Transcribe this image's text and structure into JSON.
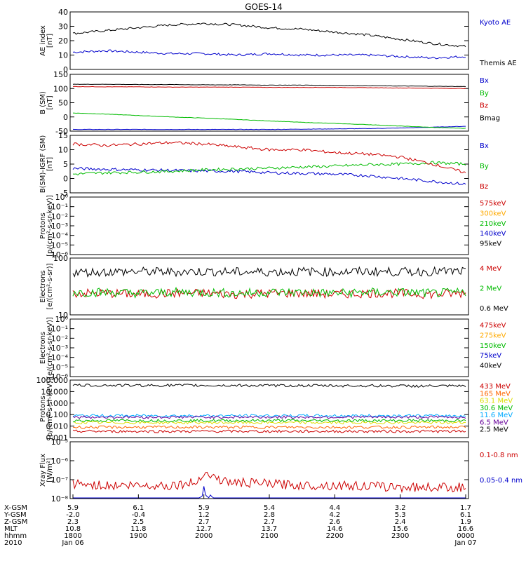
{
  "title": "GOES-14",
  "panels": [
    {
      "ylabel": "AE index\n[nT]",
      "ticks": [
        {
          "v": 0,
          "label": "0"
        },
        {
          "v": 10,
          "label": "10"
        },
        {
          "v": 20,
          "label": "20"
        },
        {
          "v": 30,
          "label": "30"
        },
        {
          "v": 40,
          "label": "40"
        }
      ],
      "legend": [
        {
          "label": "Kyoto AE",
          "color": "#0000cc"
        },
        {
          "label": "Themis AE",
          "color": "#000000"
        }
      ]
    },
    {
      "ylabel": "B (SM)\n[nT]",
      "ticks": [
        {
          "v": -50,
          "label": "-50"
        },
        {
          "v": 0,
          "label": "0"
        },
        {
          "v": 50,
          "label": "50"
        },
        {
          "v": 100,
          "label": "100"
        },
        {
          "v": 150,
          "label": "150"
        }
      ],
      "legend": [
        {
          "label": "Bx",
          "color": "#0000cc"
        },
        {
          "label": "By",
          "color": "#00bb00"
        },
        {
          "label": "Bz",
          "color": "#cc0000"
        },
        {
          "label": "Bmag",
          "color": "#000000"
        }
      ]
    },
    {
      "ylabel": "B(SM)-IGRF (SM)\n[nT]",
      "ticks": [
        {
          "v": -5,
          "label": "-5"
        },
        {
          "v": 0,
          "label": "0"
        },
        {
          "v": 5,
          "label": "5"
        },
        {
          "v": 10,
          "label": "10"
        },
        {
          "v": 15,
          "label": "15"
        }
      ],
      "legend": [
        {
          "label": "Bx",
          "color": "#0000cc"
        },
        {
          "label": "By",
          "color": "#00bb00"
        },
        {
          "label": "Bz",
          "color": "#cc0000"
        }
      ]
    },
    {
      "ylabel": "Protons\n[p/(cm²-s-sr-keV)]",
      "ticks": [
        {
          "v": -6,
          "label": "10⁻⁶"
        },
        {
          "v": -5,
          "label": "10⁻⁵"
        },
        {
          "v": -4,
          "label": "10⁻⁴"
        },
        {
          "v": -3,
          "label": "10⁻³"
        },
        {
          "v": -2,
          "label": "10⁻²"
        },
        {
          "v": -1,
          "label": "10⁻¹"
        },
        {
          "v": 0,
          "label": "10⁰"
        }
      ],
      "legend": [
        {
          "label": "575keV",
          "color": "#cc0000"
        },
        {
          "label": "300keV",
          "color": "#ffaa00"
        },
        {
          "label": "210keV",
          "color": "#00bb00"
        },
        {
          "label": "140keV",
          "color": "#0000cc"
        },
        {
          "label": "95keV",
          "color": "#000000"
        }
      ]
    },
    {
      "ylabel": "Electrons\n[e/(cm²-s-sr)]",
      "ticks": [
        {
          "v": 1,
          "label": "10"
        },
        {
          "v": 2,
          "label": "100"
        }
      ],
      "legend": [
        {
          "label": "4 MeV",
          "color": "#cc0000"
        },
        {
          "label": "2 MeV",
          "color": "#00bb00"
        },
        {
          "label": "0.6 MeV",
          "color": "#000000"
        }
      ]
    },
    {
      "ylabel": "Electrons\n[e/(cm²-s-sr-keV)]",
      "ticks": [
        {
          "v": -6,
          "label": "10⁻⁶"
        },
        {
          "v": -5,
          "label": "10⁻⁵"
        },
        {
          "v": -4,
          "label": "10⁻⁴"
        },
        {
          "v": -3,
          "label": "10⁻³"
        },
        {
          "v": -2,
          "label": "10⁻²"
        },
        {
          "v": -1,
          "label": "10⁻¹"
        },
        {
          "v": 0,
          "label": "10⁰"
        }
      ],
      "legend": [
        {
          "label": "475keV",
          "color": "#cc0000"
        },
        {
          "label": "275keV",
          "color": "#ffaa00"
        },
        {
          "label": "150keV",
          "color": "#00bb00"
        },
        {
          "label": "75keV",
          "color": "#0000cc"
        },
        {
          "label": "40keV",
          "color": "#000000"
        }
      ]
    },
    {
      "ylabel": "Protons\n[p/(cm²-s-sr-keV)]",
      "ticks": [
        {
          "v": -3,
          "label": "0.001"
        },
        {
          "v": -2,
          "label": "0.010"
        },
        {
          "v": -1,
          "label": "0.100"
        },
        {
          "v": 0,
          "label": "1.000"
        },
        {
          "v": 1,
          "label": "10.000"
        },
        {
          "v": 2,
          "label": "100.000"
        }
      ],
      "legend": [
        {
          "label": "433 MeV",
          "color": "#cc0000"
        },
        {
          "label": "165 MeV",
          "color": "#ff6600"
        },
        {
          "label": "63.1 MeV",
          "color": "#dddd00"
        },
        {
          "label": "30.6 MeV",
          "color": "#00bb00"
        },
        {
          "label": "11.6 MeV",
          "color": "#00aaff"
        },
        {
          "label": "6.5 MeV",
          "color": "#660099"
        },
        {
          "label": "2.5 MeV",
          "color": "#000000"
        }
      ]
    },
    {
      "ylabel": "Xray Flux\n[W/m²]",
      "ticks": [
        {
          "v": -8,
          "label": "10⁻⁸"
        },
        {
          "v": -7,
          "label": "10⁻⁷"
        },
        {
          "v": -6,
          "label": "10⁻⁶"
        },
        {
          "v": -5,
          "label": "10⁻⁵"
        }
      ],
      "legend": [
        {
          "label": "0.1-0.8 nm",
          "color": "#cc0000"
        },
        {
          "label": "0.05-0.4 nm",
          "color": "#0000cc"
        }
      ]
    }
  ],
  "x_axis": {
    "row_labels": [
      "X-GSM",
      "Y-GSM",
      "Z-GSM",
      "MLT",
      "hhmm",
      "2010"
    ],
    "columns": [
      [
        "5.9",
        "-2.0",
        "2.3",
        "10.8",
        "1800",
        "Jan 06"
      ],
      [
        "6.1",
        "-0.4",
        "2.5",
        "11.8",
        "1900",
        ""
      ],
      [
        "5.9",
        "1.2",
        "2.7",
        "12.7",
        "2000",
        ""
      ],
      [
        "5.4",
        "2.8",
        "2.7",
        "13.7",
        "2100",
        ""
      ],
      [
        "4.4",
        "4.2",
        "2.6",
        "14.6",
        "2200",
        ""
      ],
      [
        "3.2",
        "5.3",
        "2.4",
        "15.6",
        "2300",
        ""
      ],
      [
        "1.7",
        "6.1",
        "1.9",
        "16.6",
        "0000",
        "Jan 07"
      ]
    ]
  },
  "chart_data": [
    {
      "type": "line",
      "ylabel": "AE index [nT]",
      "ylim": [
        0,
        40
      ],
      "x": [
        0,
        0.5,
        1,
        1.5,
        2,
        2.5,
        3,
        3.5,
        4,
        4.5,
        5,
        5.5,
        6
      ],
      "series": [
        {
          "name": "Kyoto AE",
          "color": "#0000cc",
          "values": [
            12,
            13,
            12,
            11,
            11,
            10,
            11,
            10,
            10,
            10,
            9,
            8,
            9
          ]
        },
        {
          "name": "Themis AE",
          "color": "#000000",
          "values": [
            25,
            27,
            29,
            31,
            32,
            31,
            29,
            28,
            26,
            24,
            21,
            18,
            16
          ]
        }
      ]
    },
    {
      "type": "line",
      "ylabel": "B (SM) [nT]",
      "ylim": [
        -50,
        150
      ],
      "x": [
        0,
        0.5,
        1,
        1.5,
        2,
        2.5,
        3,
        3.5,
        4,
        4.5,
        5,
        5.5,
        6
      ],
      "series": [
        {
          "name": "Bx",
          "color": "#0000cc",
          "values": [
            -44,
            -44,
            -44,
            -44,
            -44,
            -44,
            -44,
            -43,
            -42,
            -41,
            -39,
            -36,
            -33
          ]
        },
        {
          "name": "By",
          "color": "#00bb00",
          "values": [
            14,
            10,
            5,
            0,
            -4,
            -9,
            -14,
            -19,
            -23,
            -27,
            -32,
            -37,
            -40
          ]
        },
        {
          "name": "Bz",
          "color": "#cc0000",
          "values": [
            107,
            106,
            106,
            105,
            105,
            105,
            104,
            104,
            104,
            103,
            102,
            101,
            100
          ]
        },
        {
          "name": "Bmag",
          "color": "#000000",
          "values": [
            115,
            115,
            114,
            114,
            113,
            113,
            112,
            112,
            111,
            110,
            109,
            108,
            107
          ]
        }
      ]
    },
    {
      "type": "line",
      "ylabel": "B(SM)-IGRF (SM) [nT]",
      "ylim": [
        -5,
        15
      ],
      "x": [
        0,
        0.5,
        1,
        1.5,
        2,
        2.5,
        3,
        3.5,
        4,
        4.5,
        5,
        5.5,
        6
      ],
      "series": [
        {
          "name": "Bx",
          "color": "#0000cc",
          "values": [
            3.5,
            3.2,
            3,
            2.8,
            2.6,
            2.5,
            2,
            1.8,
            1.5,
            1,
            0,
            -1,
            -2
          ]
        },
        {
          "name": "By",
          "color": "#00bb00",
          "values": [
            1.5,
            2,
            2.2,
            2.5,
            3,
            3.3,
            3.6,
            4,
            4.3,
            4.8,
            5,
            5.5,
            5
          ]
        },
        {
          "name": "Bz",
          "color": "#cc0000",
          "values": [
            12,
            11.5,
            12,
            12.5,
            12,
            11,
            10,
            10,
            9,
            8.5,
            7.5,
            5,
            2
          ]
        }
      ]
    },
    {
      "type": "line",
      "ylabel": "Protons [p/(cm²-s-sr-keV)]",
      "scale": "log",
      "ylim": [
        1e-06,
        1
      ],
      "series": []
    },
    {
      "type": "line",
      "ylabel": "Electrons [e/(cm²-s-sr)]",
      "scale": "log",
      "ylim": [
        10,
        100
      ],
      "x": [
        0,
        0.5,
        1,
        1.5,
        2,
        2.5,
        3,
        3.5,
        4,
        4.5,
        5,
        5.5,
        6
      ],
      "series": [
        {
          "name": "4 MeV",
          "color": "#cc0000",
          "values": [
            24,
            24,
            23,
            24,
            24,
            23,
            24,
            24,
            23,
            24,
            24,
            23,
            24
          ]
        },
        {
          "name": "2 MeV",
          "color": "#00bb00",
          "values": [
            25,
            25,
            24,
            25,
            25,
            24,
            25,
            25,
            24,
            25,
            25,
            24,
            25
          ]
        },
        {
          "name": "0.6 MeV",
          "color": "#000000",
          "values": [
            56,
            57,
            58,
            57,
            58,
            57,
            57,
            58,
            57,
            58,
            57,
            58,
            58
          ]
        }
      ]
    },
    {
      "type": "line",
      "ylabel": "Electrons [e/(cm²-s-sr-keV)]",
      "scale": "log",
      "ylim": [
        1e-06,
        1
      ],
      "series": []
    },
    {
      "type": "line",
      "ylabel": "Protons [p/(cm²-s-sr-keV)]",
      "scale": "log",
      "ylim": [
        0.001,
        100
      ],
      "x": [
        0,
        0.5,
        1,
        1.5,
        2,
        2.5,
        3,
        3.5,
        4,
        4.5,
        5,
        5.5,
        6
      ],
      "series": [
        {
          "name": "433 MeV",
          "color": "#cc0000",
          "values": [
            0.0035,
            0.0035,
            0.0035,
            0.0035,
            0.0035,
            0.0035,
            0.0035,
            0.0035,
            0.0035,
            0.0035,
            0.0035,
            0.0035,
            0.0035
          ]
        },
        {
          "name": "165 MeV",
          "color": "#ff6600",
          "values": [
            0.008,
            0.008,
            0.008,
            0.008,
            0.008,
            0.008,
            0.008,
            0.008,
            0.008,
            0.008,
            0.008,
            0.008,
            0.008
          ]
        },
        {
          "name": "63.1 MeV",
          "color": "#dddd00",
          "values": [
            0.02,
            0.02,
            0.02,
            0.02,
            0.02,
            0.02,
            0.02,
            0.02,
            0.02,
            0.02,
            0.02,
            0.02,
            0.02
          ]
        },
        {
          "name": "30.6 MeV",
          "color": "#00bb00",
          "values": [
            0.03,
            0.03,
            0.03,
            0.03,
            0.03,
            0.03,
            0.03,
            0.03,
            0.03,
            0.03,
            0.03,
            0.03,
            0.03
          ]
        },
        {
          "name": "11.6 MeV",
          "color": "#00aaff",
          "values": [
            0.08,
            0.08,
            0.08,
            0.08,
            0.08,
            0.08,
            0.08,
            0.08,
            0.08,
            0.08,
            0.08,
            0.08,
            0.08
          ]
        },
        {
          "name": "6.5 MeV",
          "color": "#660099",
          "values": [
            0.06,
            0.06,
            0.06,
            0.06,
            0.06,
            0.06,
            0.06,
            0.06,
            0.06,
            0.06,
            0.06,
            0.06,
            0.06
          ]
        },
        {
          "name": "2.5 MeV",
          "color": "#000000",
          "values": [
            35,
            35,
            34,
            35,
            34,
            34,
            33,
            33,
            32,
            32,
            31,
            30,
            30
          ]
        }
      ]
    },
    {
      "type": "line",
      "ylabel": "Xray Flux [W/m²]",
      "scale": "log",
      "ylim": [
        1e-09,
        1e-05
      ],
      "x": [
        0,
        0.5,
        1,
        1.5,
        1.9,
        2.0,
        2.1,
        2.3,
        2.5,
        3,
        3.5,
        4,
        4.5,
        5,
        5.5,
        6
      ],
      "series": [
        {
          "name": "0.1-0.8 nm",
          "color": "#cc0000",
          "values": [
            6e-08,
            5e-08,
            5e-08,
            5e-08,
            7e-08,
            2.5e-07,
            1.6e-07,
            8e-08,
            7e-08,
            6e-08,
            5e-08,
            5e-08,
            4.5e-08,
            4e-08,
            4e-08,
            4e-08
          ]
        },
        {
          "name": "0.05-0.4 nm",
          "color": "#0000cc",
          "values": [
            2e-09,
            1.5e-09,
            2e-09,
            2e-09,
            5e-09,
            2.5e-08,
            1e-08,
            2e-09,
            2e-09,
            2e-09,
            2e-09,
            3e-09,
            2e-09,
            2e-09,
            2e-09,
            3e-09
          ]
        }
      ]
    }
  ]
}
